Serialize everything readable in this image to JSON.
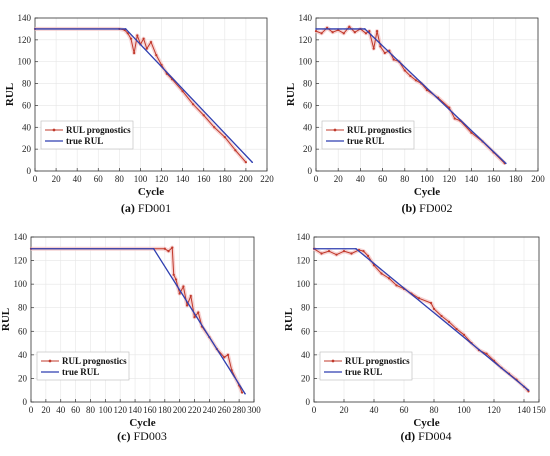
{
  "colors": {
    "true": "#2f3fb0",
    "pred": "#c0392b",
    "band": "#f4c7c7",
    "grid": "#e6e6e6"
  },
  "chart_data": [
    {
      "type": "line",
      "caption": {
        "label": "(a)",
        "name": "FD001"
      },
      "xlabel": "Cycle",
      "ylabel": "RUL",
      "xlim": [
        0,
        220
      ],
      "ylim": [
        0,
        140
      ],
      "xticks": [
        0,
        20,
        40,
        60,
        80,
        100,
        120,
        140,
        160,
        180,
        200,
        220
      ],
      "yticks": [
        0,
        20,
        40,
        60,
        80,
        100,
        120,
        140
      ],
      "legend_position": "left",
      "legend": [
        "RUL prognostics",
        "true RUL"
      ],
      "series": [
        {
          "name": "RUL prognostics",
          "x": [
            0,
            80,
            85,
            88,
            91,
            94,
            97,
            100,
            103,
            106,
            110,
            115,
            120,
            125,
            130,
            140,
            150,
            160,
            170,
            180,
            190,
            200
          ],
          "y": [
            130,
            130,
            129,
            126,
            121,
            108,
            124,
            116,
            121,
            112,
            118,
            106,
            97,
            89,
            84,
            73,
            61,
            51,
            40,
            31,
            19,
            8
          ]
        },
        {
          "name": "true RUL",
          "x": [
            0,
            86,
            206
          ],
          "y": [
            130,
            130,
            8
          ]
        }
      ]
    },
    {
      "type": "line",
      "caption": {
        "label": "(b)",
        "name": "FD002"
      },
      "xlabel": "Cycle",
      "ylabel": "RUL",
      "xlim": [
        0,
        200
      ],
      "ylim": [
        0,
        140
      ],
      "xticks": [
        0,
        20,
        40,
        60,
        80,
        100,
        120,
        140,
        160,
        180,
        200
      ],
      "yticks": [
        0,
        20,
        40,
        60,
        80,
        100,
        120,
        140
      ],
      "legend_position": "bottom-left",
      "legend": [
        "RUL prognostics",
        "true RUL"
      ],
      "series": [
        {
          "name": "RUL prognostics",
          "x": [
            0,
            5,
            10,
            15,
            20,
            25,
            30,
            35,
            40,
            45,
            48,
            52,
            55,
            58,
            62,
            66,
            70,
            75,
            80,
            85,
            90,
            95,
            100,
            110,
            120,
            125,
            130,
            140,
            150,
            160,
            170
          ],
          "y": [
            128,
            126,
            131,
            127,
            129,
            126,
            132,
            127,
            130,
            126,
            128,
            112,
            128,
            114,
            108,
            110,
            102,
            100,
            92,
            87,
            83,
            80,
            74,
            67,
            58,
            48,
            46,
            35,
            27,
            17,
            7
          ]
        },
        {
          "name": "true RUL",
          "x": [
            0,
            44,
            171
          ],
          "y": [
            130,
            130,
            7
          ]
        }
      ]
    },
    {
      "type": "line",
      "caption": {
        "label": "(c)",
        "name": "FD003"
      },
      "xlabel": "Cycle",
      "ylabel": "RUL",
      "xlim": [
        0,
        300
      ],
      "ylim": [
        0,
        140
      ],
      "xticks": [
        0,
        20,
        40,
        60,
        80,
        100,
        120,
        140,
        160,
        180,
        200,
        220,
        240,
        260,
        280,
        300
      ],
      "yticks": [
        0,
        20,
        40,
        60,
        80,
        100,
        120,
        140
      ],
      "legend_position": "bottom-left",
      "legend": [
        "RUL prognostics",
        "true RUL"
      ],
      "series": [
        {
          "name": "RUL prognostics",
          "x": [
            0,
            180,
            185,
            190,
            192,
            195,
            200,
            205,
            210,
            215,
            220,
            225,
            230,
            240,
            250,
            260,
            265,
            270,
            280,
            284
          ],
          "y": [
            130,
            130,
            128,
            131,
            108,
            104,
            92,
            98,
            82,
            90,
            72,
            76,
            64,
            55,
            45,
            38,
            40,
            27,
            14,
            8
          ]
        },
        {
          "name": "true RUL",
          "x": [
            0,
            165,
            288
          ],
          "y": [
            130,
            130,
            7
          ]
        }
      ]
    },
    {
      "type": "line",
      "caption": {
        "label": "(d)",
        "name": "FD004"
      },
      "xlabel": "Cycle",
      "ylabel": "RUL",
      "xlim": [
        0,
        150
      ],
      "ylim": [
        0,
        140
      ],
      "xticks": [
        0,
        20,
        40,
        60,
        80,
        100,
        120,
        140,
        150
      ],
      "yticks": [
        0,
        20,
        40,
        60,
        80,
        100,
        120,
        140
      ],
      "legend_position": "bottom-left",
      "legend": [
        "RUL prognostics",
        "true RUL"
      ],
      "series": [
        {
          "name": "RUL prognostics",
          "x": [
            0,
            5,
            10,
            15,
            20,
            25,
            30,
            33,
            36,
            40,
            45,
            50,
            55,
            60,
            65,
            70,
            78,
            80,
            85,
            90,
            95,
            100,
            105,
            110,
            115,
            120,
            125,
            130,
            135,
            140,
            143
          ],
          "y": [
            130,
            126,
            128,
            125,
            128,
            126,
            129,
            128,
            124,
            116,
            109,
            105,
            99,
            96,
            92,
            88,
            84,
            79,
            73,
            68,
            62,
            57,
            50,
            44,
            41,
            35,
            29,
            24,
            19,
            13,
            9
          ]
        },
        {
          "name": "true RUL",
          "x": [
            0,
            28,
            143
          ],
          "y": [
            130,
            130,
            10
          ]
        }
      ]
    }
  ]
}
